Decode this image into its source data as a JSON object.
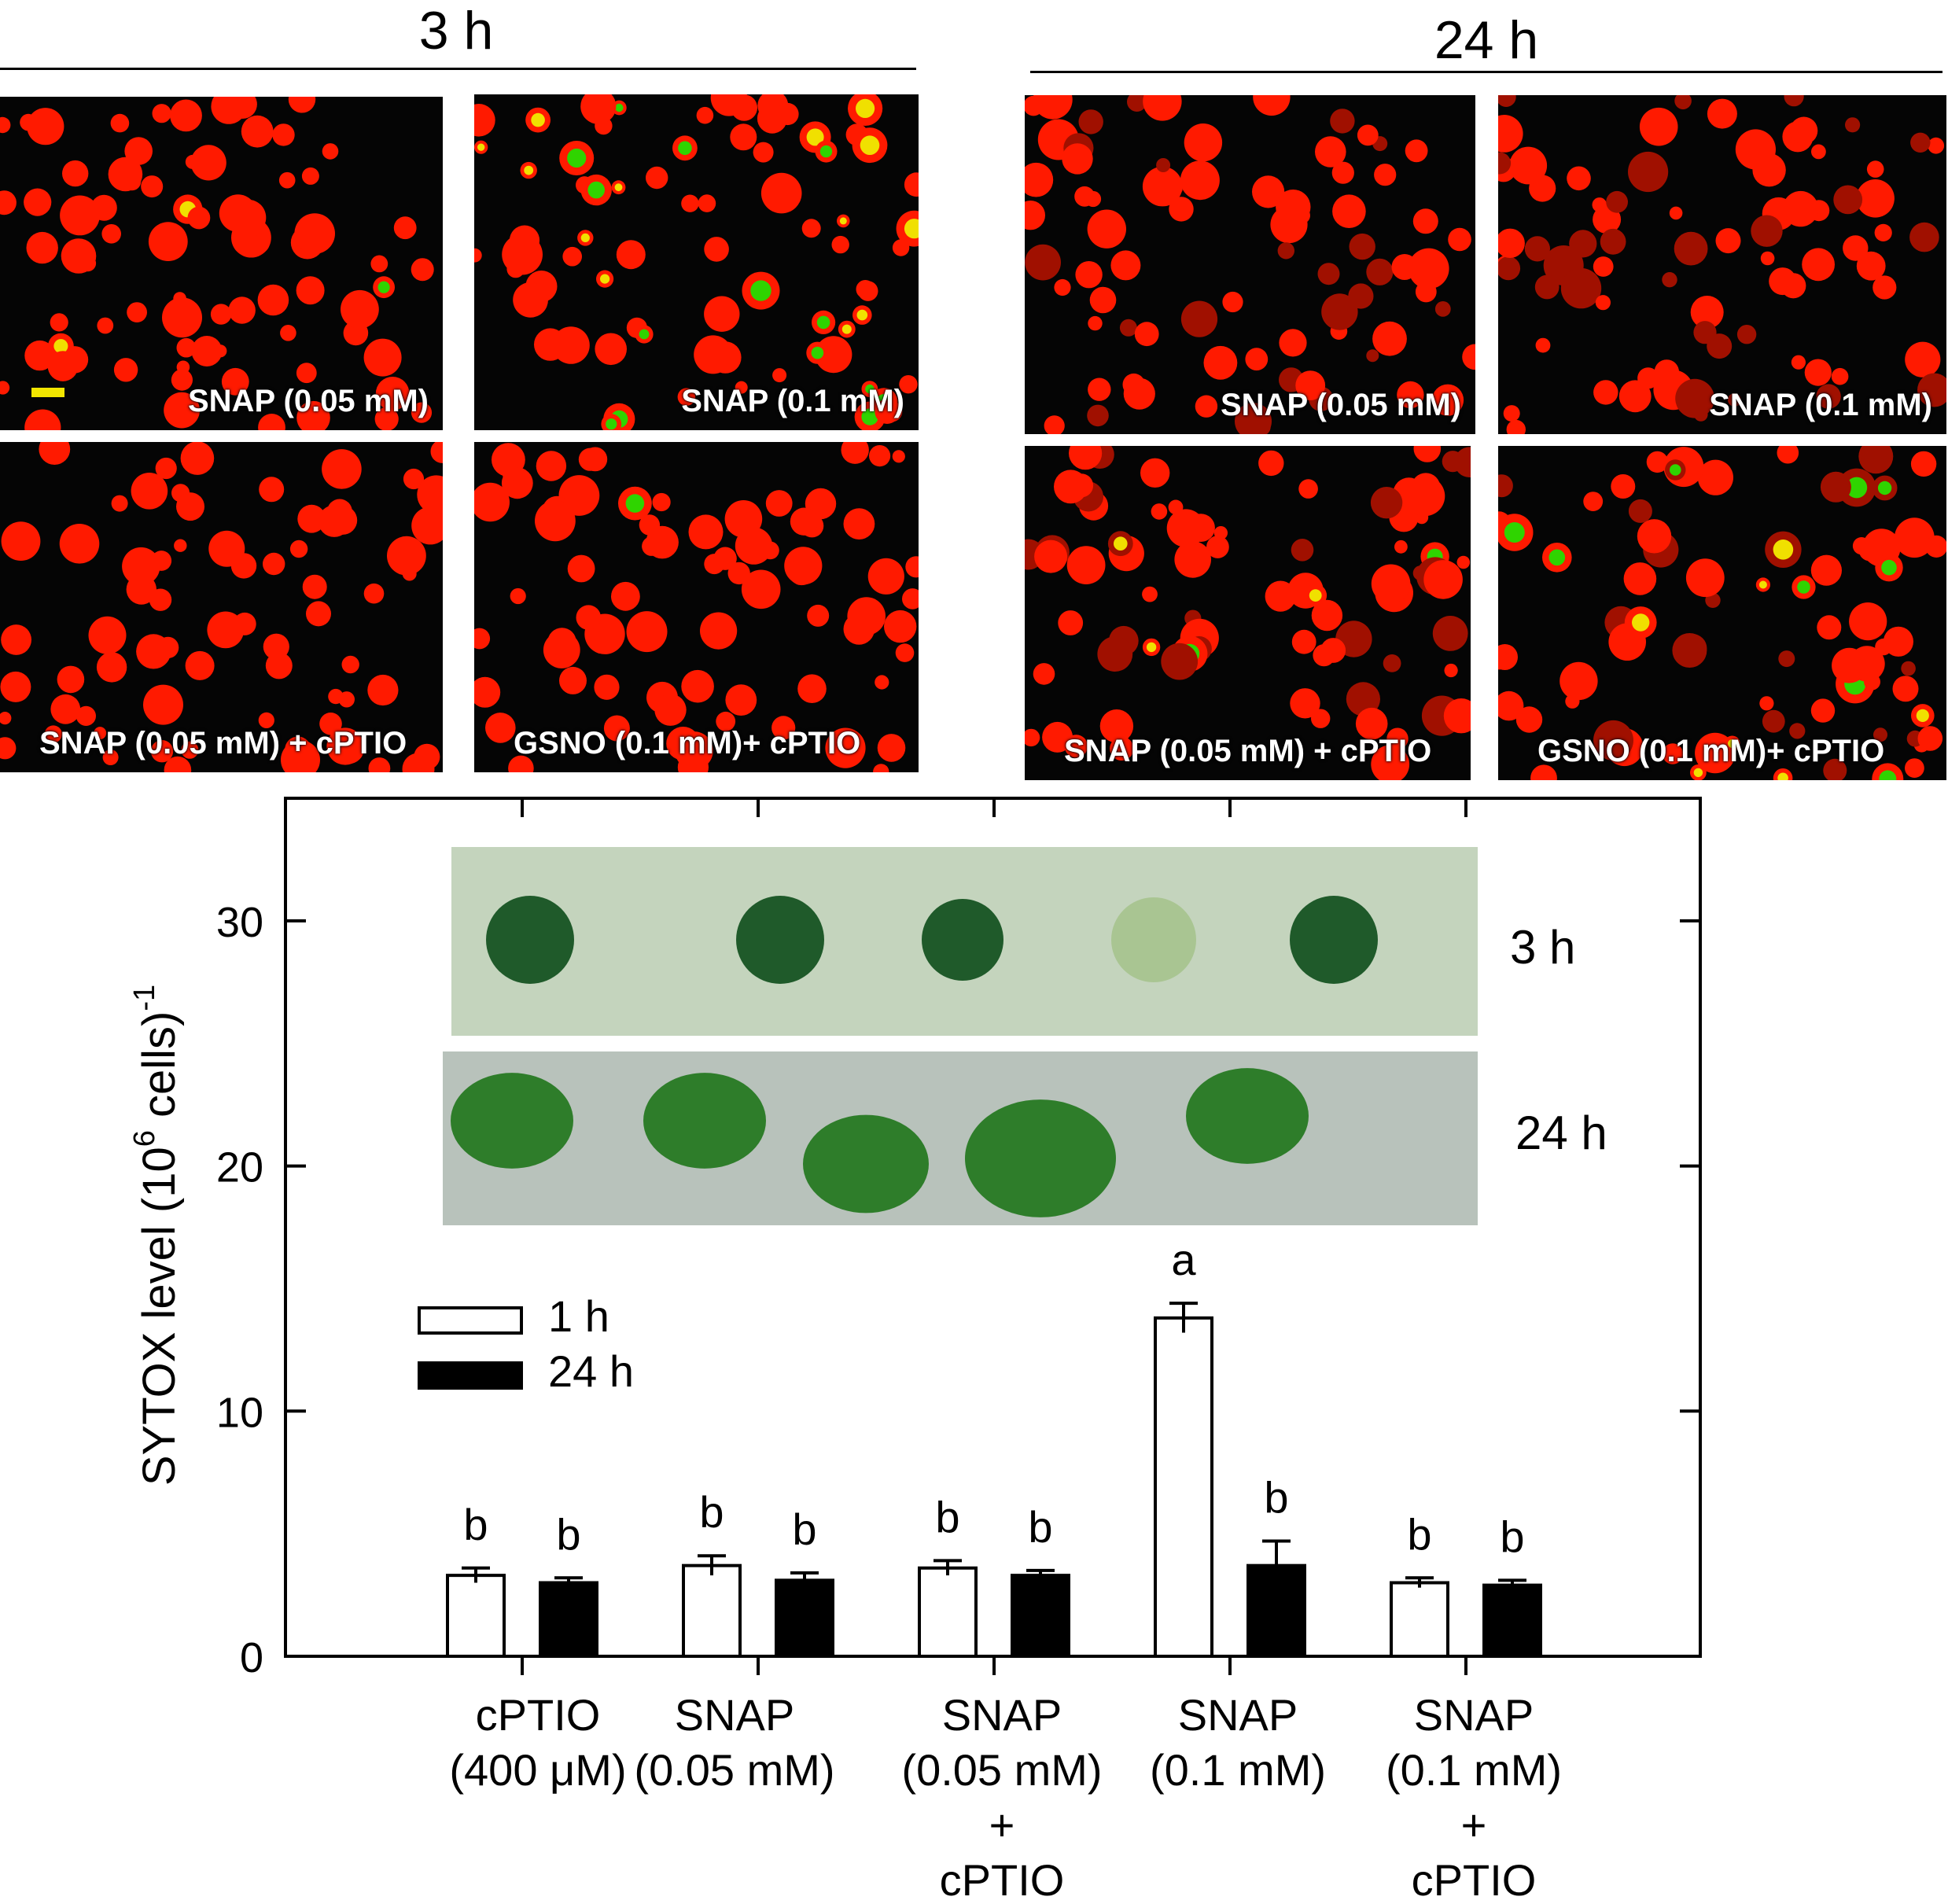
{
  "micrographs": {
    "groups": [
      {
        "title": "3 h"
      },
      {
        "title": "24 h"
      }
    ],
    "panels": [
      {
        "group": 0,
        "label": "SNAP (0.05 mM)",
        "green_fraction": 0.05,
        "scale_bar": true
      },
      {
        "group": 0,
        "label": "SNAP (0.1 mM)",
        "green_fraction": 0.35
      },
      {
        "group": 0,
        "label": "SNAP (0.05 mM) + cPTIO",
        "green_fraction": 0.04
      },
      {
        "group": 0,
        "label": "GSNO (0.1 mM)+ cPTIO",
        "green_fraction": 0.06
      },
      {
        "group": 1,
        "label": "SNAP (0.05 mM)",
        "green_fraction": 0.0
      },
      {
        "group": 1,
        "label": "SNAP (0.1 mM)",
        "green_fraction": 0.0
      },
      {
        "group": 1,
        "label": "SNAP (0.05 mM) + cPTIO",
        "green_fraction": 0.04
      },
      {
        "group": 1,
        "label": "GSNO (0.1 mM)+ cPTIO",
        "green_fraction": 0.12
      }
    ],
    "colors": {
      "cell_red": "#ff1a00",
      "stain_green": "#2fd400",
      "stain_yellow": "#f0e000",
      "background": "#050505"
    }
  },
  "plates": [
    {
      "label": "3 h",
      "background": "#c4d4bd",
      "colony_color": "#1f5a2a"
    },
    {
      "label": "24 h",
      "background": "#b8c2bb",
      "colony_color": "#2e7d2a"
    }
  ],
  "chart_data": {
    "type": "bar",
    "ylabel": "SYTOX level (10^6 cells)^-1",
    "ylabel_parts": {
      "pre": "SYTOX level (10",
      "sup1": "6",
      "mid": " cells)",
      "sup2": "-1"
    },
    "ylim": [
      0,
      35
    ],
    "yticks": [
      0,
      10,
      20,
      30
    ],
    "categories": [
      [
        "cPTIO",
        "(400 μM)"
      ],
      [
        "SNAP",
        "(0.05 mM)"
      ],
      [
        "SNAP",
        "(0.05 mM)",
        "+",
        "cPTIO"
      ],
      [
        "SNAP",
        "(0.1 mM)"
      ],
      [
        "SNAP",
        "(0.1 mM)",
        "+",
        "cPTIO"
      ]
    ],
    "series": [
      {
        "name": "1 h",
        "fill": "#ffffff",
        "values": [
          3.3,
          3.7,
          3.6,
          13.8,
          3.0
        ],
        "errors": [
          0.3,
          0.4,
          0.3,
          0.6,
          0.2
        ],
        "letters": [
          "b",
          "b",
          "b",
          "a",
          "b"
        ]
      },
      {
        "name": "24 h",
        "fill": "#000000",
        "values": [
          3.0,
          3.1,
          3.3,
          3.7,
          2.9
        ],
        "errors": [
          0.2,
          0.3,
          0.2,
          1.0,
          0.2
        ],
        "letters": [
          "b",
          "b",
          "b",
          "b",
          "b"
        ]
      }
    ],
    "legend": "upper-left",
    "grid": false
  }
}
